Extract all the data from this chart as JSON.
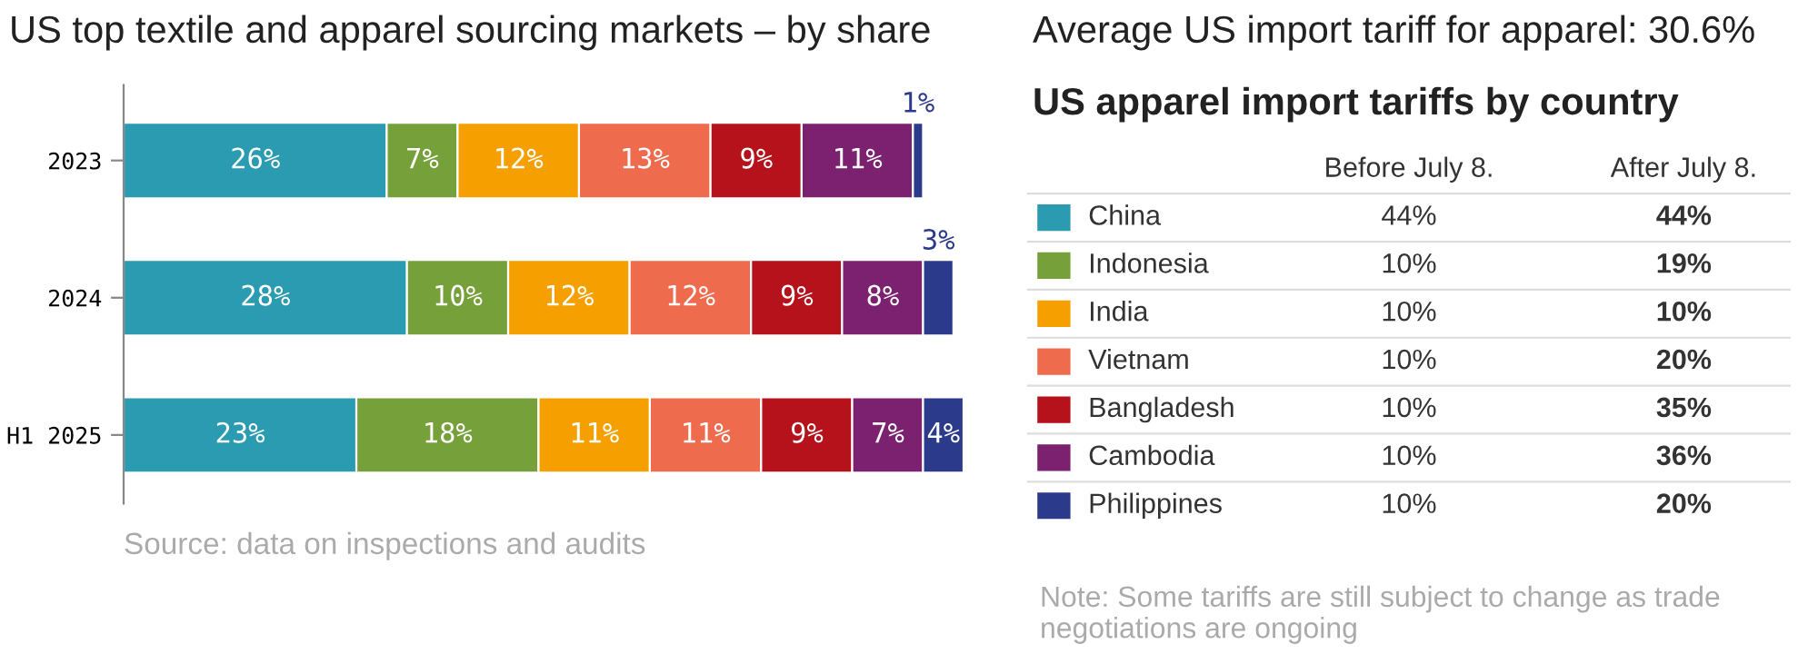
{
  "chart_data": [
    {
      "type": "bar",
      "title": "US top textile and apparel sourcing markets – by share",
      "orientation": "horizontal",
      "stacked": true,
      "categories": [
        "2023",
        "2024",
        "H1 2025"
      ],
      "series": [
        {
          "color": "#2a9bb0",
          "values": [
            26,
            28,
            23
          ],
          "value_labels": [
            "26%",
            "28%",
            "23%"
          ]
        },
        {
          "color": "#76a13a",
          "values": [
            7,
            10,
            18
          ],
          "value_labels": [
            "7%",
            "10%",
            "18%"
          ]
        },
        {
          "color": "#f5a000",
          "values": [
            12,
            12,
            11
          ],
          "value_labels": [
            "12%",
            "12%",
            "11%"
          ]
        },
        {
          "color": "#ef6b4d",
          "values": [
            13,
            12,
            11
          ],
          "value_labels": [
            "13%",
            "12%",
            "11%"
          ]
        },
        {
          "color": "#b5121b",
          "values": [
            9,
            9,
            9
          ],
          "value_labels": [
            "9%",
            "9%",
            "9%"
          ]
        },
        {
          "color": "#7b2170",
          "values": [
            11,
            8,
            7
          ],
          "value_labels": [
            "11%",
            "8%",
            "7%"
          ]
        },
        {
          "color": "#2b3a8a",
          "values": [
            1,
            3,
            4
          ],
          "value_labels": [
            "1%",
            "3%",
            "4%"
          ]
        }
      ],
      "annotations": [
        "Source: data on inspections and audits"
      ]
    },
    {
      "type": "other",
      "title": "Average US import tariff for apparel: 30.6%",
      "subtitle": "US apparel import tariffs by country",
      "categories": [
        "China",
        "Indonesia",
        "India",
        "Vietnam",
        "Bangladesh",
        "Cambodia",
        "Philippines"
      ],
      "colors": [
        "#2a9bb0",
        "#76a13a",
        "#f5a000",
        "#ef6b4d",
        "#b5121b",
        "#7b2170",
        "#2b3a8a"
      ],
      "series": [
        {
          "name": "Before July 8.",
          "values": [
            44,
            10,
            10,
            10,
            10,
            10,
            10
          ],
          "value_labels": [
            "44%",
            "10%",
            "10%",
            "10%",
            "10%",
            "10%",
            "10%"
          ]
        },
        {
          "name": "After July 8.",
          "values": [
            44,
            19,
            10,
            20,
            35,
            36,
            20
          ],
          "value_labels": [
            "44%",
            "19%",
            "10%",
            "20%",
            "35%",
            "36%",
            "20%"
          ]
        }
      ],
      "annotations": [
        "Note: Some tariffs are still subject to change as trade negotiations are ongoing"
      ]
    }
  ]
}
